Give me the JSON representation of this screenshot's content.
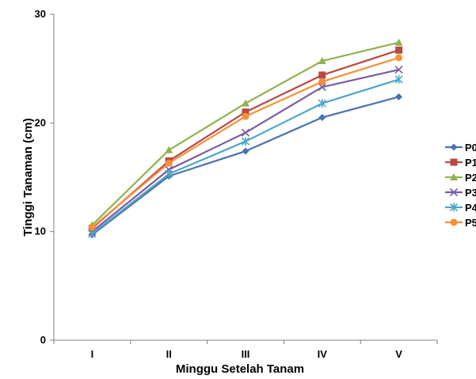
{
  "chart_data": {
    "type": "line",
    "categories": [
      "I",
      "II",
      "III",
      "IV",
      "V"
    ],
    "xlabel": "Minggu Setelah Tanam",
    "ylabel": "Tinggi Tanaman (cm)",
    "ylim": [
      0,
      30
    ],
    "yticks": [
      "0",
      "10",
      "20",
      "30"
    ],
    "grid": false,
    "legend_position": "right",
    "series": [
      {
        "name": "P0",
        "color": "#4a72b0",
        "marker": "diamond",
        "values": [
          9.7,
          15.1,
          17.4,
          20.5,
          22.4
        ]
      },
      {
        "name": "P1",
        "color": "#b94845",
        "marker": "square",
        "values": [
          10.3,
          16.5,
          21.0,
          24.4,
          26.7
        ]
      },
      {
        "name": "P2",
        "color": "#8db34f",
        "marker": "triangle",
        "values": [
          10.6,
          17.5,
          21.8,
          25.7,
          27.4
        ]
      },
      {
        "name": "P3",
        "color": "#7b5aa2",
        "marker": "x",
        "values": [
          10.0,
          15.7,
          19.1,
          23.3,
          24.9
        ]
      },
      {
        "name": "P4",
        "color": "#4ba6c6",
        "marker": "star",
        "values": [
          9.8,
          15.3,
          18.3,
          21.8,
          24.0
        ]
      },
      {
        "name": "P5",
        "color": "#f49137",
        "marker": "circle",
        "values": [
          10.4,
          16.3,
          20.6,
          23.8,
          26.0
        ]
      }
    ]
  }
}
